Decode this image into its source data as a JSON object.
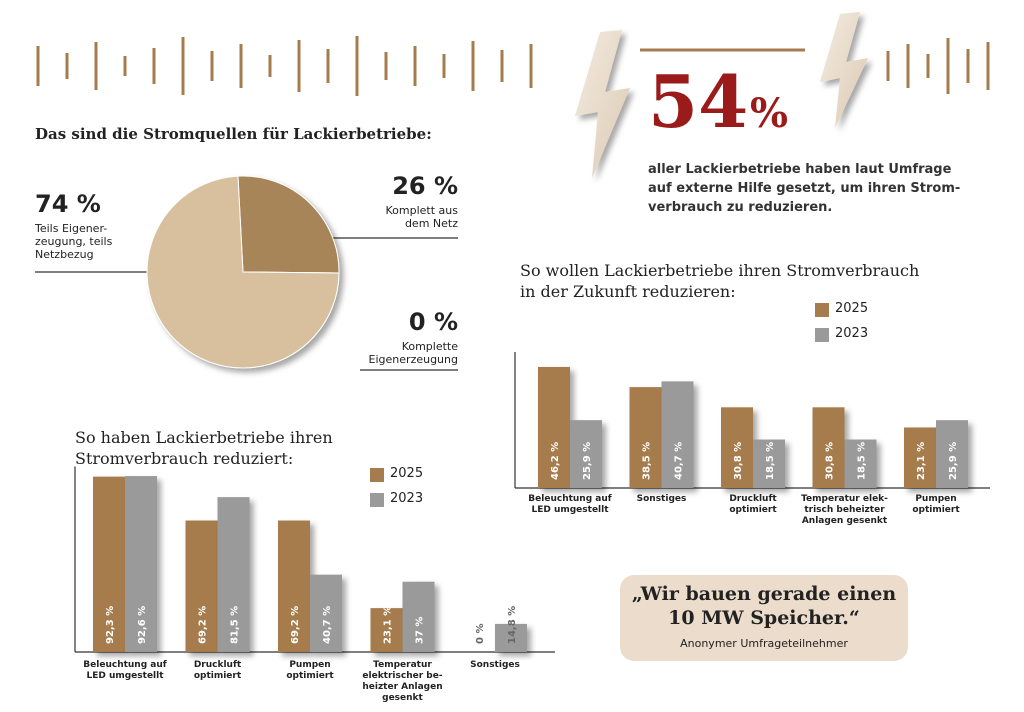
{
  "chart_data": [
    {
      "type": "pie",
      "title": "Das sind die Stromquellen für Lackierbetriebe:",
      "categories": [
        "Teils Eigener-\nzeugung, teils\nNetzbezug",
        "Komplett aus\ndem Netz",
        "Komplette\nEigenerzeugung"
      ],
      "values": [
        74,
        26,
        0
      ],
      "value_labels": [
        "74 %",
        "26 %",
        "0 %"
      ],
      "colors": [
        "#d8c09f",
        "#a88559",
        "#8a6a44"
      ]
    },
    {
      "type": "bar",
      "title": "So haben Lackierbetriebe ihren\nStromverbrauch reduziert:",
      "categories": [
        "Beleuchtung auf\nLED umgestellt",
        "Druckluft\noptimiert",
        "Pumpen\noptimiert",
        "Temperatur\nelektrischer be-\nheizter Anlagen\ngesenkt",
        "Sonstiges"
      ],
      "series": [
        {
          "name": "2025",
          "color": "#a67c4e",
          "values": [
            92.3,
            69.2,
            69.2,
            23.1,
            0
          ],
          "value_labels": [
            "92,3 %",
            "69,2 %",
            "69,2 %",
            "23,1 %",
            "0 %"
          ]
        },
        {
          "name": "2023",
          "color": "#9a9a9a",
          "values": [
            92.6,
            81.5,
            40.7,
            37,
            14.8
          ],
          "value_labels": [
            "92,6 %",
            "81,5 %",
            "40,7 %",
            "37 %",
            "14,8 %"
          ]
        }
      ],
      "ylim": [
        0,
        95
      ]
    },
    {
      "type": "bar",
      "title": "So wollen Lackierbetriebe ihren Stromverbrauch\nin der Zukunft reduzieren:",
      "categories": [
        "Beleuchtung auf\nLED umgestellt",
        "Sonstiges",
        "Druckluft\noptimiert",
        "Temperatur elek-\ntrisch beheizter\nAnlagen gesenkt",
        "Pumpen\noptimiert"
      ],
      "series": [
        {
          "name": "2025",
          "color": "#a67c4e",
          "values": [
            46.2,
            38.5,
            30.8,
            30.8,
            23.1
          ],
          "value_labels": [
            "46,2 %",
            "38,5 %",
            "30,8 %",
            "30,8 %",
            "23,1 %"
          ]
        },
        {
          "name": "2023",
          "color": "#9a9a9a",
          "values": [
            25.9,
            40.7,
            18.5,
            18.5,
            25.9
          ],
          "value_labels": [
            "25,9 %",
            "40,7 %",
            "18,5 %",
            "18,5 %",
            "25,9 %"
          ]
        }
      ],
      "ylim": [
        0,
        50
      ]
    }
  ],
  "highlight": {
    "number": "54",
    "unit": "%",
    "text": "aller Lackierbetriebe haben laut Umfrage\nauf externe Hilfe gesetzt, um ihren Strom-\nverbrauch zu reduzieren."
  },
  "quote": {
    "text": "„Wir bauen gerade einen\n10 MW Speicher.“",
    "author": "Anonymer Umfrageteilnehmer"
  }
}
